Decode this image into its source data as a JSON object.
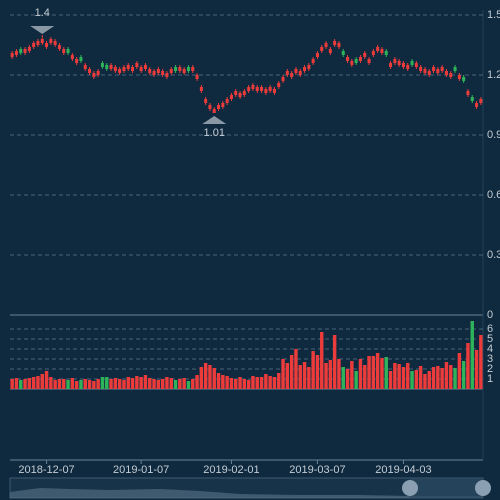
{
  "chart_data": {
    "type": "candlestick",
    "categories": [
      null,
      null,
      null,
      null,
      null,
      null,
      null,
      null,
      "2018-12-07",
      null,
      null,
      null,
      null,
      null,
      null,
      null,
      null,
      null,
      null,
      null,
      null,
      null,
      null,
      null,
      null,
      null,
      null,
      null,
      null,
      null,
      "2019-01-07",
      null,
      null,
      null,
      null,
      null,
      null,
      null,
      null,
      null,
      null,
      null,
      null,
      null,
      null,
      null,
      null,
      null,
      null,
      null,
      null,
      "2019-02-01",
      null,
      null,
      null,
      null,
      null,
      null,
      null,
      null,
      null,
      null,
      null,
      null,
      null,
      null,
      null,
      null,
      null,
      null,
      null,
      "2019-03-07",
      null,
      null,
      null,
      null,
      null,
      null,
      null,
      null,
      null,
      null,
      null,
      null,
      null,
      null,
      null,
      null,
      null,
      null,
      null,
      "2019-04-03",
      null,
      null,
      null,
      null,
      null,
      null,
      null,
      null,
      null,
      null,
      null,
      null,
      null,
      null,
      null,
      null,
      null,
      null
    ],
    "open": [
      1.29,
      1.3,
      1.33,
      1.31,
      1.32,
      1.34,
      1.35,
      1.36,
      1.34,
      1.36,
      1.35,
      1.33,
      1.31,
      1.33,
      1.28,
      1.26,
      1.29,
      1.23,
      1.21,
      1.19,
      1.2,
      1.26,
      1.25,
      1.23,
      1.22,
      1.21,
      1.22,
      1.23,
      1.22,
      1.24,
      1.22,
      1.23,
      1.21,
      1.2,
      1.21,
      1.2,
      1.19,
      1.21,
      1.24,
      1.22,
      1.21,
      1.24,
      1.22,
      1.18,
      1.12,
      1.06,
      1.03,
      1.01,
      1.03,
      1.04,
      1.06,
      1.08,
      1.1,
      1.09,
      1.1,
      1.12,
      1.13,
      1.12,
      1.12,
      1.11,
      1.12,
      1.11,
      1.14,
      1.17,
      1.2,
      1.19,
      1.21,
      1.2,
      1.22,
      1.23,
      1.26,
      1.29,
      1.32,
      1.34,
      1.31,
      1.35,
      1.34,
      1.32,
      1.27,
      1.25,
      1.28,
      1.27,
      1.29,
      1.26,
      1.3,
      1.32,
      1.31,
      1.32,
      1.24,
      1.26,
      1.25,
      1.24,
      1.23,
      1.27,
      1.24,
      1.22,
      1.21,
      1.2,
      1.22,
      1.21,
      1.22,
      1.2,
      1.19,
      1.24,
      1.18,
      1.19,
      1.1,
      1.09,
      1.04,
      1.06
    ],
    "close": [
      1.31,
      1.32,
      1.31,
      1.33,
      1.34,
      1.36,
      1.37,
      1.38,
      1.36,
      1.38,
      1.37,
      1.35,
      1.33,
      1.31,
      1.3,
      1.28,
      1.27,
      1.25,
      1.23,
      1.21,
      1.22,
      1.24,
      1.23,
      1.25,
      1.24,
      1.23,
      1.24,
      1.25,
      1.24,
      1.26,
      1.24,
      1.25,
      1.23,
      1.22,
      1.23,
      1.22,
      1.21,
      1.23,
      1.22,
      1.24,
      1.23,
      1.22,
      1.24,
      1.2,
      1.14,
      1.08,
      1.05,
      1.03,
      1.05,
      1.06,
      1.08,
      1.1,
      1.12,
      1.11,
      1.12,
      1.14,
      1.15,
      1.14,
      1.14,
      1.13,
      1.14,
      1.13,
      1.16,
      1.19,
      1.22,
      1.21,
      1.23,
      1.22,
      1.24,
      1.25,
      1.28,
      1.31,
      1.34,
      1.36,
      1.33,
      1.37,
      1.36,
      1.3,
      1.29,
      1.27,
      1.26,
      1.29,
      1.31,
      1.28,
      1.32,
      1.34,
      1.33,
      1.3,
      1.26,
      1.28,
      1.27,
      1.26,
      1.25,
      1.25,
      1.26,
      1.24,
      1.23,
      1.22,
      1.24,
      1.23,
      1.24,
      1.22,
      1.21,
      1.22,
      1.2,
      1.17,
      1.12,
      1.07,
      1.06,
      1.08
    ],
    "low": [
      1.28,
      1.29,
      1.3,
      1.3,
      1.31,
      1.33,
      1.34,
      1.35,
      1.33,
      1.35,
      1.34,
      1.32,
      1.3,
      1.3,
      1.27,
      1.25,
      1.26,
      1.22,
      1.2,
      1.18,
      1.19,
      1.23,
      1.22,
      1.22,
      1.21,
      1.2,
      1.21,
      1.22,
      1.21,
      1.23,
      1.21,
      1.22,
      1.2,
      1.19,
      1.2,
      1.19,
      1.18,
      1.2,
      1.21,
      1.21,
      1.2,
      1.21,
      1.21,
      1.17,
      1.11,
      1.05,
      1.02,
      1.01,
      1.02,
      1.03,
      1.05,
      1.07,
      1.09,
      1.08,
      1.09,
      1.11,
      1.12,
      1.11,
      1.11,
      1.1,
      1.11,
      1.1,
      1.13,
      1.16,
      1.19,
      1.18,
      1.2,
      1.19,
      1.21,
      1.22,
      1.25,
      1.28,
      1.31,
      1.33,
      1.3,
      1.34,
      1.33,
      1.29,
      1.26,
      1.24,
      1.25,
      1.26,
      1.28,
      1.25,
      1.29,
      1.31,
      1.3,
      1.29,
      1.23,
      1.25,
      1.24,
      1.23,
      1.22,
      1.24,
      1.23,
      1.21,
      1.2,
      1.19,
      1.21,
      1.2,
      1.21,
      1.19,
      1.18,
      1.21,
      1.17,
      1.16,
      1.09,
      1.06,
      1.03,
      1.05
    ],
    "high": [
      1.32,
      1.33,
      1.34,
      1.34,
      1.35,
      1.37,
      1.38,
      1.4,
      1.37,
      1.39,
      1.38,
      1.36,
      1.34,
      1.34,
      1.31,
      1.29,
      1.3,
      1.26,
      1.24,
      1.22,
      1.23,
      1.27,
      1.26,
      1.26,
      1.25,
      1.24,
      1.25,
      1.26,
      1.25,
      1.27,
      1.25,
      1.26,
      1.24,
      1.23,
      1.24,
      1.23,
      1.22,
      1.24,
      1.25,
      1.25,
      1.24,
      1.25,
      1.25,
      1.21,
      1.15,
      1.09,
      1.06,
      1.04,
      1.06,
      1.07,
      1.09,
      1.11,
      1.13,
      1.12,
      1.13,
      1.15,
      1.16,
      1.15,
      1.15,
      1.14,
      1.15,
      1.14,
      1.17,
      1.2,
      1.23,
      1.22,
      1.24,
      1.23,
      1.25,
      1.26,
      1.29,
      1.32,
      1.35,
      1.37,
      1.34,
      1.38,
      1.37,
      1.33,
      1.3,
      1.28,
      1.29,
      1.3,
      1.32,
      1.29,
      1.33,
      1.35,
      1.34,
      1.33,
      1.27,
      1.29,
      1.28,
      1.27,
      1.26,
      1.28,
      1.27,
      1.25,
      1.24,
      1.23,
      1.25,
      1.24,
      1.25,
      1.23,
      1.22,
      1.25,
      1.21,
      1.2,
      1.13,
      1.1,
      1.07,
      1.09
    ],
    "volume": [
      1.0,
      1.1,
      0.9,
      1.0,
      1.1,
      1.2,
      1.3,
      1.5,
      1.8,
      1.2,
      0.9,
      1.0,
      1.0,
      0.9,
      1.1,
      0.8,
      0.9,
      1.0,
      0.9,
      0.8,
      1.0,
      1.2,
      1.2,
      1.0,
      1.1,
      1.0,
      0.9,
      1.2,
      1.1,
      1.3,
      1.2,
      1.4,
      1.1,
      1.0,
      0.9,
      1.0,
      1.2,
      1.1,
      0.9,
      1.0,
      1.1,
      0.8,
      1.0,
      1.4,
      2.2,
      2.6,
      2.4,
      2.1,
      1.6,
      1.4,
      1.3,
      1.1,
      1.0,
      1.2,
      1.0,
      0.9,
      1.3,
      1.2,
      1.2,
      1.5,
      1.3,
      1.2,
      1.6,
      3.0,
      2.6,
      3.4,
      4.0,
      2.4,
      2.7,
      2.2,
      3.8,
      3.4,
      5.7,
      2.6,
      2.9,
      5.4,
      3.0,
      2.2,
      2.0,
      2.8,
      1.8,
      3.0,
      2.4,
      3.3,
      3.3,
      3.6,
      3.1,
      3.2,
      1.8,
      2.6,
      2.5,
      2.2,
      2.6,
      1.8,
      1.9,
      2.3,
      1.5,
      1.8,
      2.2,
      2.3,
      2.1,
      2.7,
      2.4,
      2.1,
      3.6,
      2.8,
      4.6,
      6.8,
      3.9,
      5.4
    ],
    "up_color": "#eb3b3b",
    "down_color": "#2fb35a",
    "ylim": [
      0,
      1.5
    ],
    "yticks": [
      0,
      0.3,
      0.6,
      0.9,
      1.2,
      1.5
    ],
    "y2lim": [
      0,
      7.3
    ],
    "y2ticks": [
      1,
      2,
      3,
      4,
      5,
      6
    ],
    "markers": [
      {
        "type": "max",
        "value": 1.4
      },
      {
        "type": "min",
        "value": 1.01
      }
    ],
    "grid": true
  }
}
